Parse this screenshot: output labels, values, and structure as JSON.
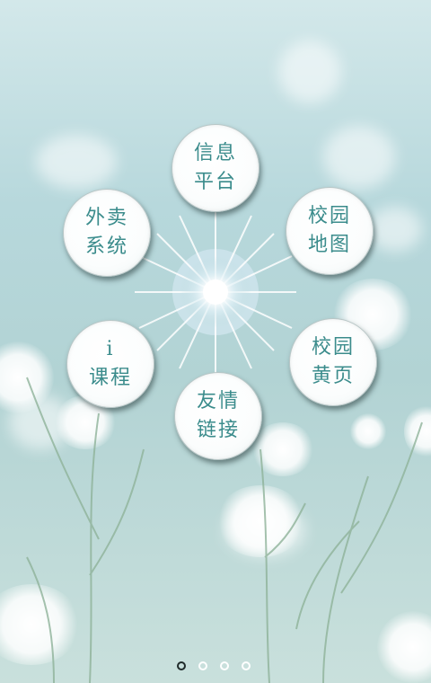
{
  "menu": {
    "items": [
      {
        "line1": "信息",
        "line2": "平台"
      },
      {
        "line1": "外卖",
        "line2": "系统"
      },
      {
        "line1": "校园",
        "line2": "地图"
      },
      {
        "line1": "i",
        "line2": "课程"
      },
      {
        "line1": "校园",
        "line2": "黄页"
      },
      {
        "line1": "友情",
        "line2": "链接"
      }
    ]
  },
  "pager": {
    "total_pages": 4,
    "current_page": 1
  },
  "colors": {
    "label_text": "#3b8c8c",
    "background": "#b7d8dc"
  }
}
